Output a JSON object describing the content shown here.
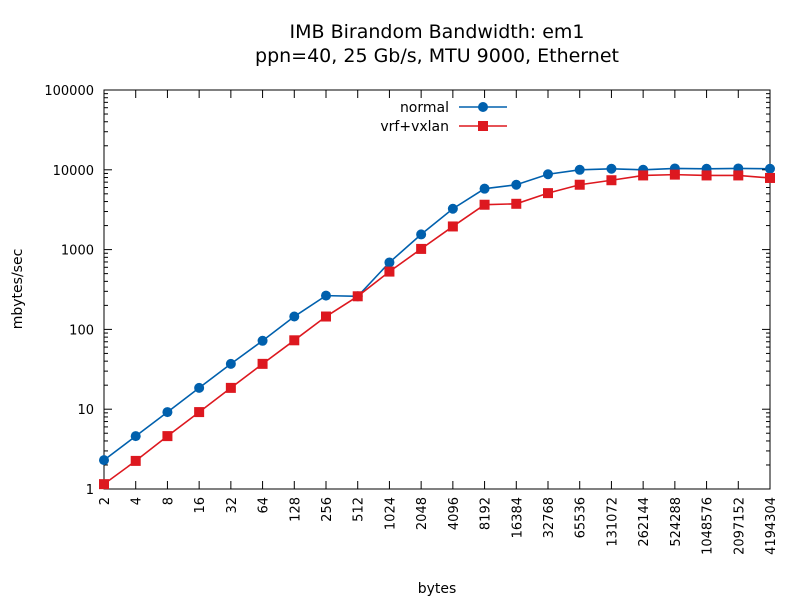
{
  "chart_data": {
    "type": "line",
    "title": [
      "IMB Birandom Bandwidth: em1",
      "ppn=40, 25 Gb/s, MTU 9000, Ethernet"
    ],
    "xlabel": "bytes",
    "ylabel": "mbytes/sec",
    "xscale": "log2",
    "yscale": "log10",
    "ylim": [
      1,
      100000
    ],
    "grid": false,
    "legend_position": "top-center",
    "x_ticks": [
      "2",
      "4",
      "8",
      "16",
      "32",
      "64",
      "128",
      "256",
      "512",
      "1024",
      "2048",
      "4096",
      "8192",
      "16384",
      "32768",
      "65536",
      "131072",
      "262144",
      "524288",
      "1048576",
      "2097152",
      "4194304"
    ],
    "y_ticks": [
      "1",
      "10",
      "100",
      "1000",
      "10000",
      "100000"
    ],
    "x": [
      2,
      4,
      8,
      16,
      32,
      64,
      128,
      256,
      512,
      1024,
      2048,
      4096,
      8192,
      16384,
      32768,
      65536,
      131072,
      262144,
      524288,
      1048576,
      2097152,
      4194304
    ],
    "series": [
      {
        "name": "normal",
        "color": "#0060ad",
        "marker": "circle",
        "values": [
          2.3,
          4.6,
          9.2,
          18.5,
          37,
          72,
          145,
          265,
          260,
          690,
          1550,
          3250,
          5800,
          6500,
          8800,
          10000,
          10300,
          10000,
          10400,
          10300,
          10400,
          10300
        ]
      },
      {
        "name": "vrf+vxlan",
        "color": "#dd181f",
        "marker": "square",
        "values": [
          1.15,
          2.25,
          4.6,
          9.2,
          18.5,
          37,
          73,
          145,
          260,
          530,
          1020,
          1950,
          3650,
          3750,
          5100,
          6500,
          7400,
          8500,
          8700,
          8500,
          8500,
          7900
        ]
      }
    ]
  }
}
